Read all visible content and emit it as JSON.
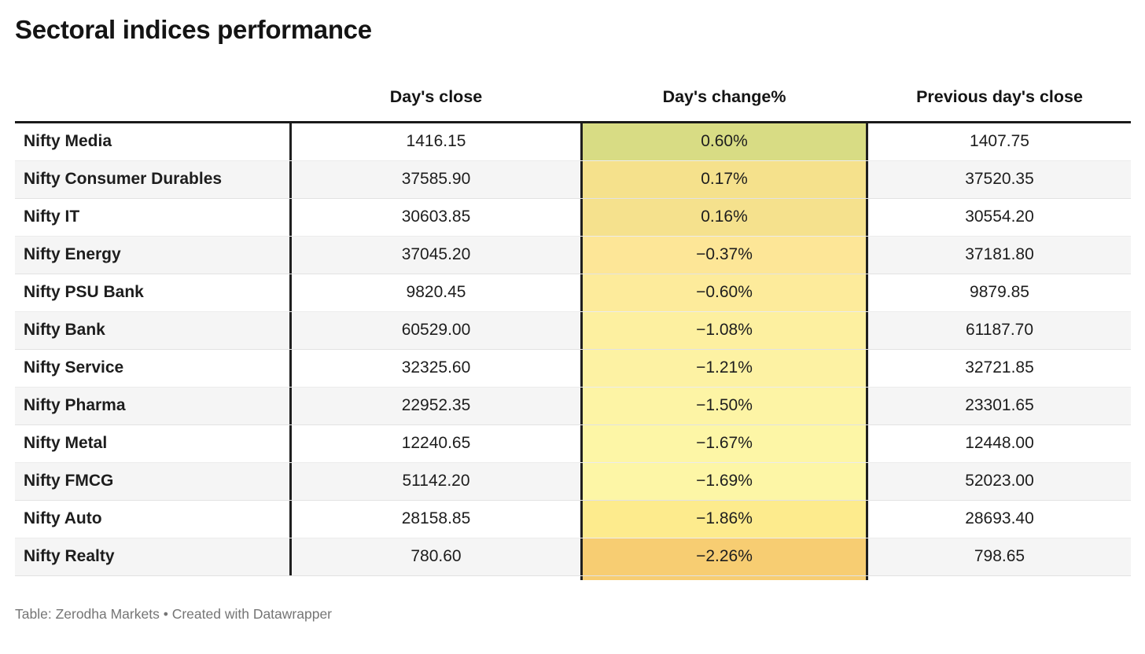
{
  "title": "Sectoral indices performance",
  "chart_data": {
    "type": "table",
    "title": "Sectoral indices performance",
    "columns": [
      "",
      "Day's close",
      "Day's change%",
      "Previous day's close"
    ],
    "rows": [
      {
        "label": "Nifty Media",
        "days_close": 1416.15,
        "days_change_pct": 0.6,
        "prev_day_close": 1407.75,
        "change_cell_bg": "#d8dc84"
      },
      {
        "label": "Nifty Consumer Durables",
        "days_close": 37585.9,
        "days_change_pct": 0.17,
        "prev_day_close": 37520.35,
        "change_cell_bg": "#f5e18c"
      },
      {
        "label": "Nifty IT",
        "days_close": 30603.85,
        "days_change_pct": 0.16,
        "prev_day_close": 30554.2,
        "change_cell_bg": "#f5e18d"
      },
      {
        "label": "Nifty Energy",
        "days_close": 37045.2,
        "days_change_pct": -0.37,
        "prev_day_close": 37181.8,
        "change_cell_bg": "#fde697"
      },
      {
        "label": "Nifty PSU Bank",
        "days_close": 9820.45,
        "days_change_pct": -0.6,
        "prev_day_close": 9879.85,
        "change_cell_bg": "#fdeb9b"
      },
      {
        "label": "Nifty Bank",
        "days_close": 60529.0,
        "days_change_pct": -1.08,
        "prev_day_close": 61187.7,
        "change_cell_bg": "#fdf0a0"
      },
      {
        "label": "Nifty Service",
        "days_close": 32325.6,
        "days_change_pct": -1.21,
        "prev_day_close": 32721.85,
        "change_cell_bg": "#fdf2a3"
      },
      {
        "label": "Nifty Pharma",
        "days_close": 22952.35,
        "days_change_pct": -1.5,
        "prev_day_close": 23301.65,
        "change_cell_bg": "#fdf4a5"
      },
      {
        "label": "Nifty Metal",
        "days_close": 12240.65,
        "days_change_pct": -1.67,
        "prev_day_close": 12448.0,
        "change_cell_bg": "#fdf6a6"
      },
      {
        "label": "Nifty FMCG",
        "days_close": 51142.2,
        "days_change_pct": -1.69,
        "prev_day_close": 52023.0,
        "change_cell_bg": "#fdf6a6"
      },
      {
        "label": "Nifty Auto",
        "days_close": 28158.85,
        "days_change_pct": -1.86,
        "prev_day_close": 28693.4,
        "change_cell_bg": "#fdeb8d"
      },
      {
        "label": "Nifty Realty",
        "days_close": 780.6,
        "days_change_pct": -2.26,
        "prev_day_close": 798.65,
        "change_cell_bg": "#f7cd72"
      }
    ],
    "layout": {
      "striped_rows": true,
      "alt_row_bg": "#f5f5f5",
      "divider_color": "#1f1f1f",
      "heatmap_column": "Day's change%",
      "heatmap_scale": {
        "positive_end": "#d8dc84",
        "pale_mid": "#fdf6a6",
        "negative_end": "#f7cd72"
      }
    }
  },
  "footer": {
    "prefix": "Table: ",
    "source": "Zerodha Markets",
    "separator": " • ",
    "created_with": "Created with ",
    "tool": "Datawrapper"
  }
}
